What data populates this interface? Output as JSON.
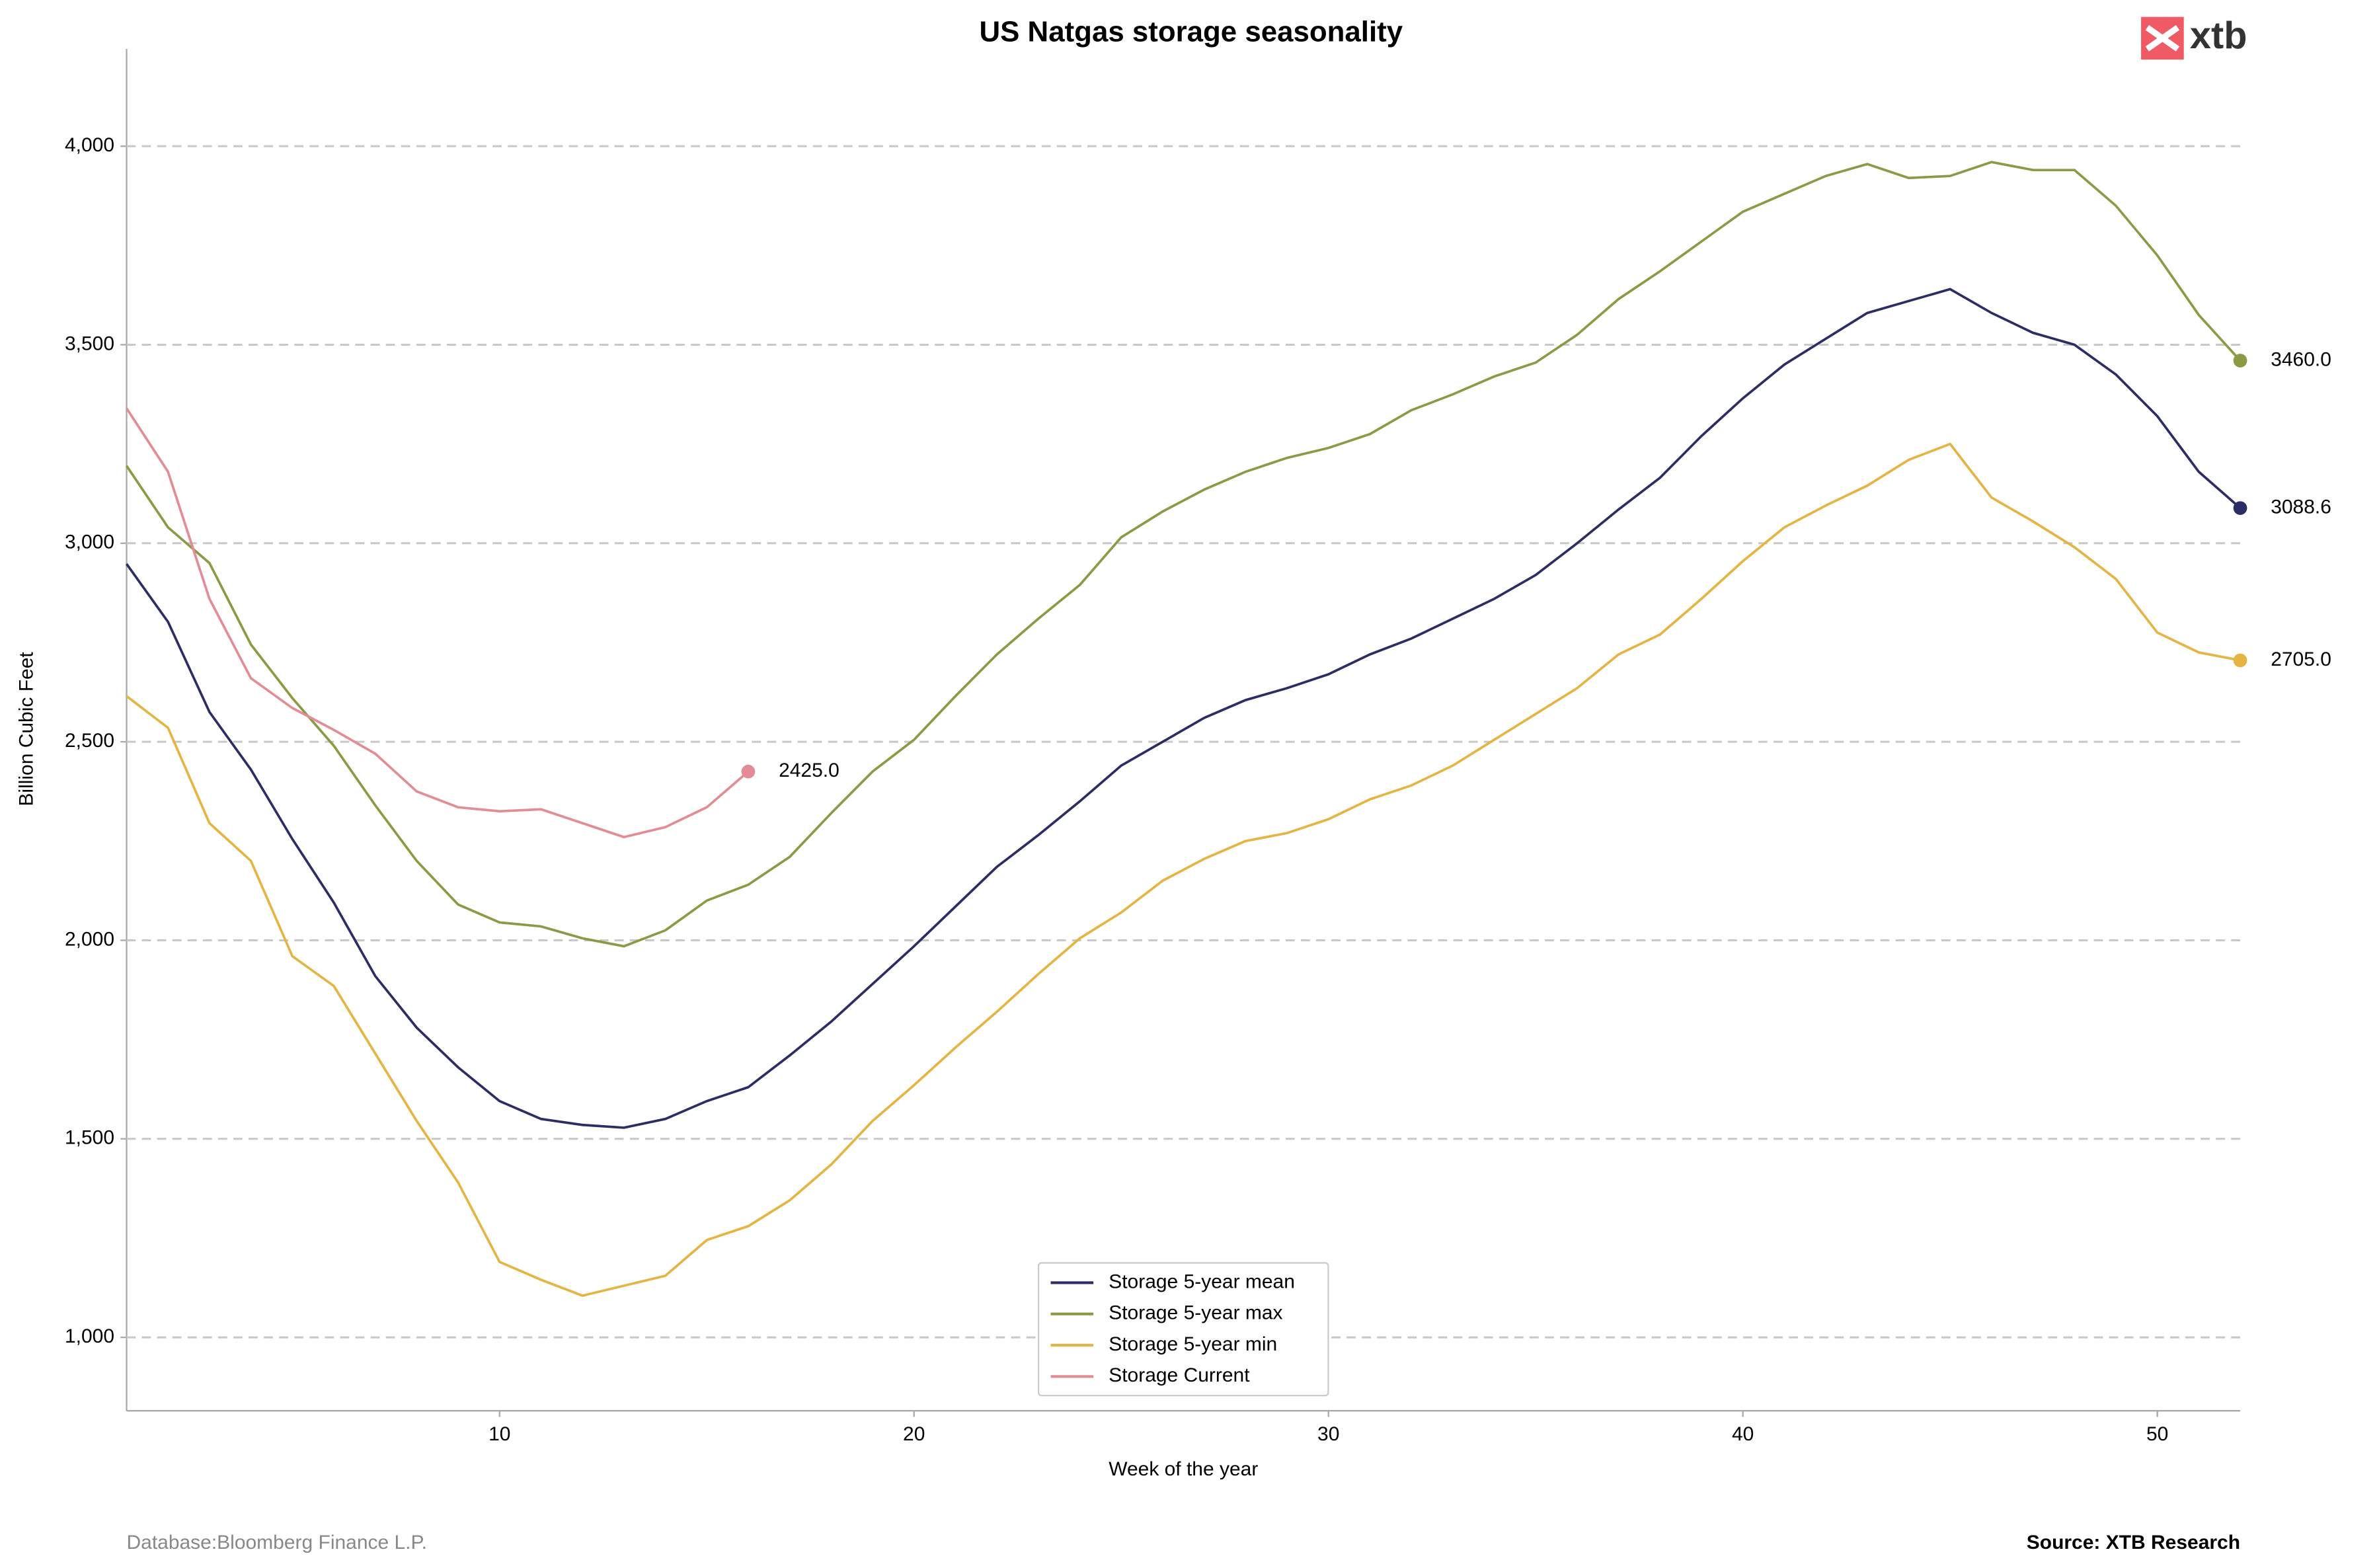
{
  "chart_data": {
    "type": "line",
    "title": "US Natgas storage seasonality",
    "x_label": "Week of the year",
    "y_label": "Billion Cubic Feet",
    "footer_left": "Database:Bloomberg Finance L.P.",
    "footer_right": "Source: XTB Research",
    "logo": "xtb",
    "x": [
      1,
      2,
      3,
      4,
      5,
      6,
      7,
      8,
      9,
      10,
      11,
      12,
      13,
      14,
      15,
      16,
      17,
      18,
      19,
      20,
      21,
      22,
      23,
      24,
      25,
      26,
      27,
      28,
      29,
      30,
      31,
      32,
      33,
      34,
      35,
      36,
      37,
      38,
      39,
      40,
      41,
      42,
      43,
      44,
      45,
      46,
      47,
      48,
      49,
      50,
      51,
      52
    ],
    "xlim": [
      1,
      52
    ],
    "xticks": [
      10,
      20,
      30,
      40,
      50
    ],
    "ylim": [
      815,
      4245
    ],
    "yticks": [
      {
        "value": 1000,
        "label": "1,000"
      },
      {
        "value": 1500,
        "label": "1,500"
      },
      {
        "value": 2000,
        "label": "2,000"
      },
      {
        "value": 2500,
        "label": "2,500"
      },
      {
        "value": 3000,
        "label": "3,000"
      },
      {
        "value": 3500,
        "label": "3,500"
      },
      {
        "value": 4000,
        "label": "4,000"
      }
    ],
    "grid": true,
    "legend": "lower center",
    "series": [
      {
        "name": "Storage 5-year mean",
        "color": "#2b2d64",
        "values": [
          2948,
          2802,
          2575,
          2430,
          2255,
          2095,
          1910,
          1780,
          1680,
          1595,
          1550,
          1535,
          1528,
          1550,
          1595,
          1630,
          1710,
          1795,
          1890,
          1985,
          2085,
          2185,
          2265,
          2350,
          2440,
          2500,
          2560,
          2605,
          2635,
          2670,
          2720,
          2760,
          2810,
          2860,
          2920,
          3000,
          3085,
          3165,
          3270,
          3365,
          3450,
          3515,
          3580,
          3610,
          3640,
          3580,
          3530,
          3500,
          3425,
          3320,
          3180,
          3088.6
        ],
        "value_labels": [
          null,
          null,
          null,
          null,
          null,
          null,
          null,
          null,
          null,
          null,
          null,
          null,
          null,
          null,
          null,
          null,
          null,
          null,
          null,
          null,
          null,
          null,
          null,
          null,
          null,
          null,
          null,
          null,
          null,
          null,
          null,
          null,
          null,
          null,
          null,
          null,
          null,
          null,
          null,
          null,
          null,
          null,
          null,
          null,
          null,
          null,
          null,
          null,
          null,
          null,
          null,
          "3088.6"
        ]
      },
      {
        "name": "Storage 5-year max",
        "color": "#8a9a45",
        "values": [
          3195,
          3040,
          2950,
          2745,
          2610,
          2490,
          2340,
          2200,
          2090,
          2045,
          2035,
          2005,
          1985,
          2025,
          2100,
          2140,
          2210,
          2320,
          2425,
          2505,
          2615,
          2720,
          2810,
          2895,
          3015,
          3080,
          3135,
          3180,
          3215,
          3240,
          3275,
          3335,
          3375,
          3420,
          3455,
          3525,
          3615,
          3685,
          3760,
          3835,
          3880,
          3925,
          3955,
          3920,
          3925,
          3960,
          3940,
          3940,
          3850,
          3725,
          3575,
          3460
        ],
        "value_labels": [
          null,
          null,
          null,
          null,
          null,
          null,
          null,
          null,
          null,
          null,
          null,
          null,
          null,
          null,
          null,
          null,
          null,
          null,
          null,
          null,
          null,
          null,
          null,
          null,
          null,
          null,
          null,
          null,
          null,
          null,
          null,
          null,
          null,
          null,
          null,
          null,
          null,
          null,
          null,
          null,
          null,
          null,
          null,
          null,
          null,
          null,
          null,
          null,
          null,
          null,
          null,
          "3460.0"
        ]
      },
      {
        "name": "Storage 5-year min",
        "color": "#e5b443",
        "values": [
          2615,
          2535,
          2295,
          2200,
          1960,
          1885,
          1715,
          1545,
          1390,
          1190,
          1145,
          1105,
          1130,
          1155,
          1245,
          1280,
          1345,
          1435,
          1545,
          1635,
          1730,
          1820,
          1915,
          2005,
          2070,
          2150,
          2205,
          2250,
          2270,
          2305,
          2355,
          2390,
          2440,
          2505,
          2570,
          2635,
          2720,
          2770,
          2860,
          2955,
          3040,
          3095,
          3145,
          3210,
          3250,
          3115,
          3055,
          2990,
          2910,
          2775,
          2725,
          2705
        ],
        "value_labels": [
          null,
          null,
          null,
          null,
          null,
          null,
          null,
          null,
          null,
          null,
          null,
          null,
          null,
          null,
          null,
          null,
          null,
          null,
          null,
          null,
          null,
          null,
          null,
          null,
          null,
          null,
          null,
          null,
          null,
          null,
          null,
          null,
          null,
          null,
          null,
          null,
          null,
          null,
          null,
          null,
          null,
          null,
          null,
          null,
          null,
          null,
          null,
          null,
          null,
          null,
          null,
          "2705.0"
        ]
      },
      {
        "name": "Storage Current",
        "color": "#e48c95",
        "values": [
          3340,
          3180,
          2860,
          2660,
          2585,
          2530,
          2470,
          2375,
          2335,
          2325,
          2330,
          2295,
          2260,
          2285,
          2335,
          2425,
          null,
          null,
          null,
          null,
          null,
          null,
          null,
          null,
          null,
          null,
          null,
          null,
          null,
          null,
          null,
          null,
          null,
          null,
          null,
          null,
          null,
          null,
          null,
          null,
          null,
          null,
          null,
          null,
          null,
          null,
          null,
          null,
          null,
          null,
          null,
          null
        ],
        "value_labels": [
          null,
          null,
          null,
          null,
          null,
          null,
          null,
          null,
          null,
          null,
          null,
          null,
          null,
          null,
          null,
          "2425.0",
          null,
          null,
          null,
          null,
          null,
          null,
          null,
          null,
          null,
          null,
          null,
          null,
          null,
          null,
          null,
          null,
          null,
          null,
          null,
          null,
          null,
          null,
          null,
          null,
          null,
          null,
          null,
          null,
          null,
          null,
          null,
          null,
          null,
          null,
          null,
          null
        ]
      }
    ]
  }
}
